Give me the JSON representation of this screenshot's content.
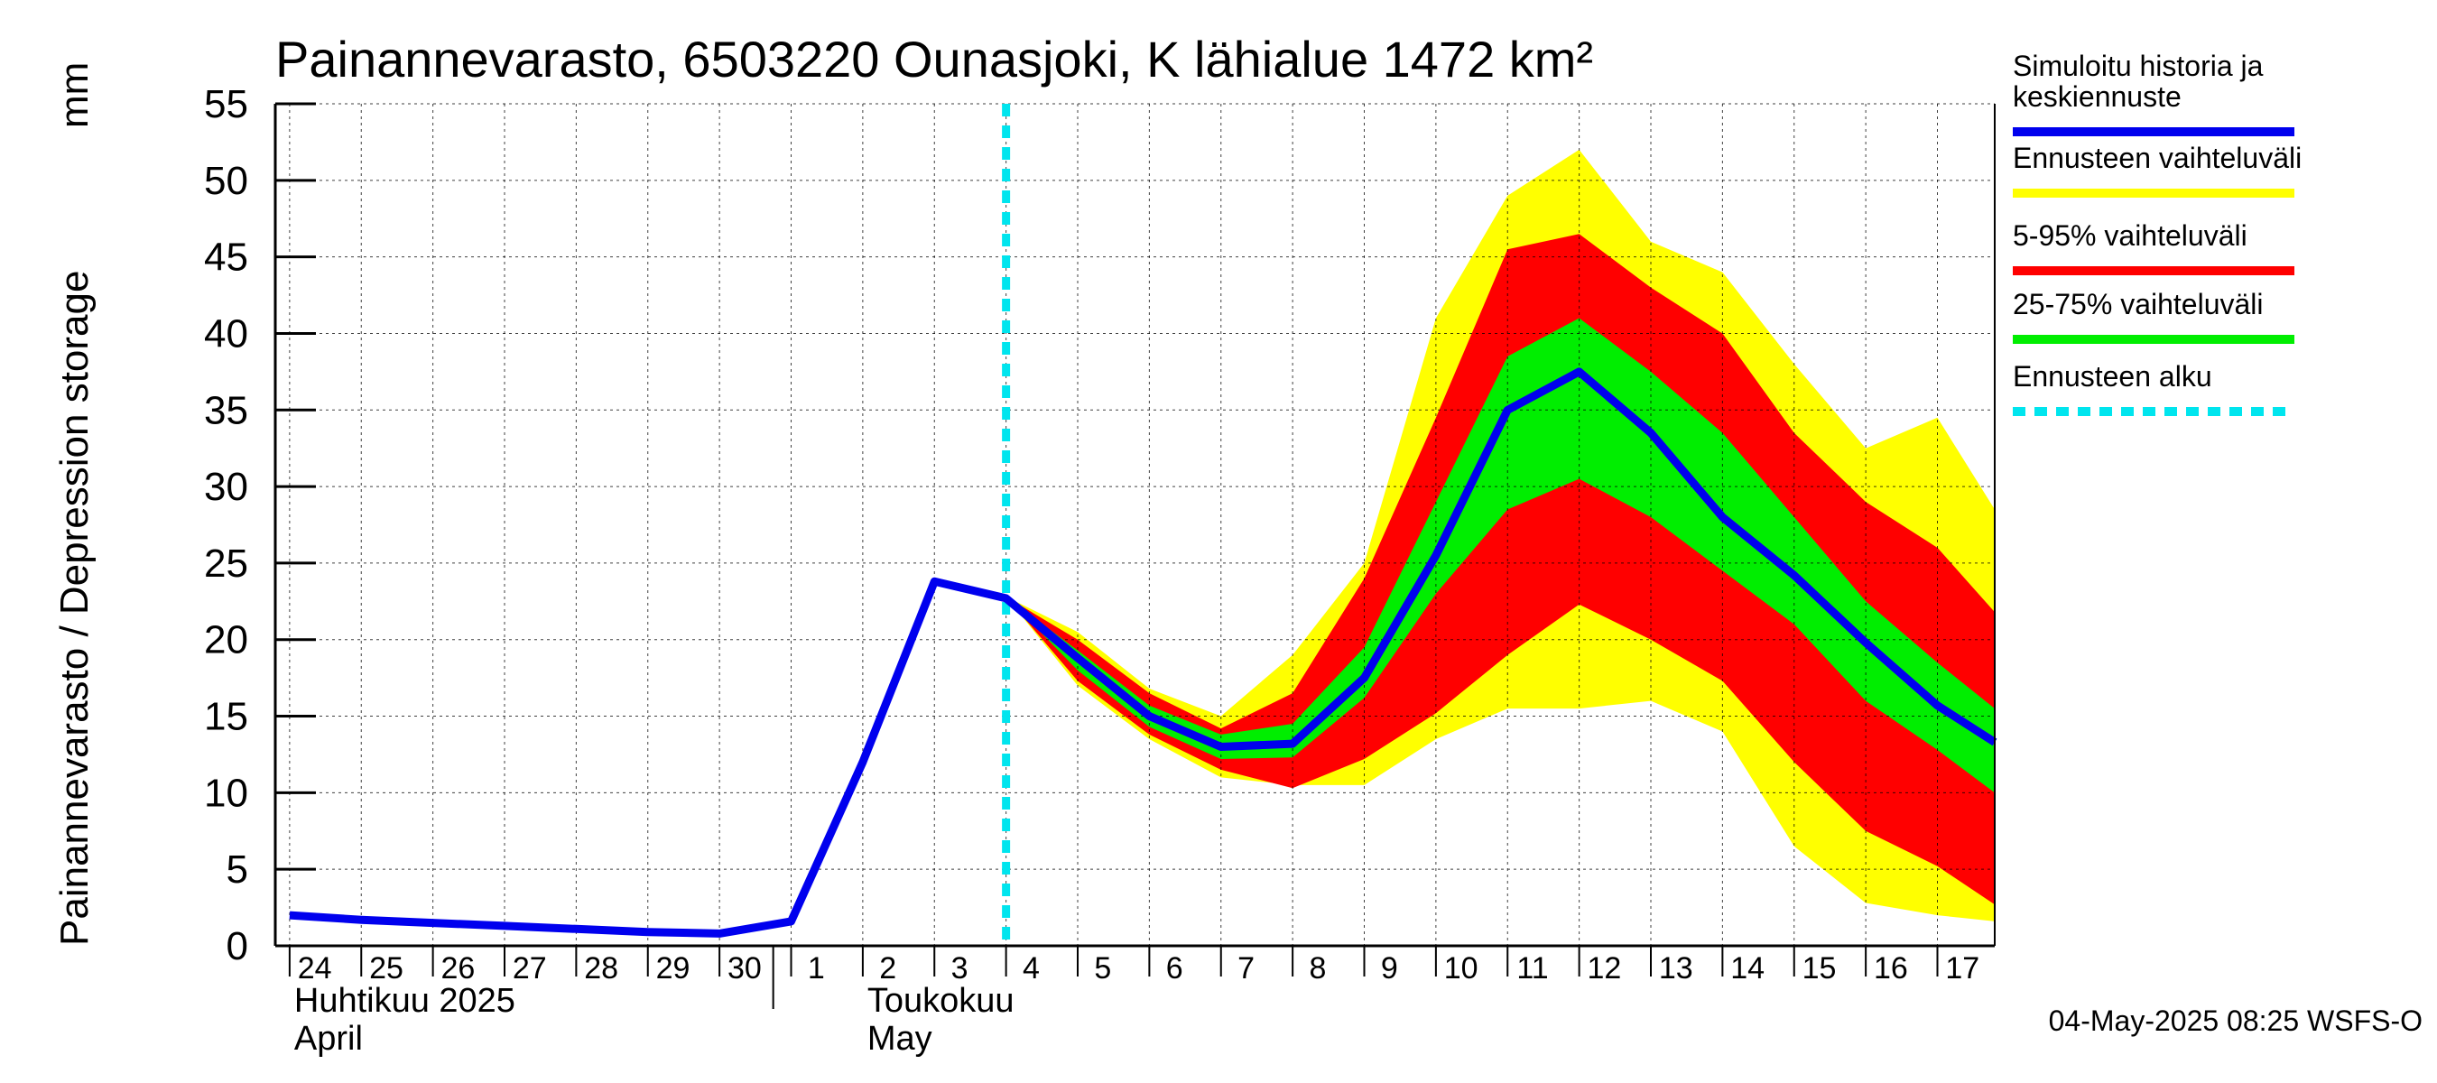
{
  "chart_data": {
    "type": "area",
    "title": "Painannevarasto, 6503220 Ounasjoki, K lähialue 1472 km²",
    "ylabel_left": "Painannevarasto / Depression storage",
    "ylabel_unit": "mm",
    "ylim": [
      0,
      55
    ],
    "yticks": [
      0,
      5,
      10,
      15,
      20,
      25,
      30,
      35,
      40,
      45,
      50,
      55
    ],
    "grid": true,
    "x_range": [
      -0.2,
      23.8
    ],
    "x_ticks": [
      {
        "x": 0,
        "label": "24"
      },
      {
        "x": 1,
        "label": "25"
      },
      {
        "x": 2,
        "label": "26"
      },
      {
        "x": 3,
        "label": "27"
      },
      {
        "x": 4,
        "label": "28"
      },
      {
        "x": 5,
        "label": "29"
      },
      {
        "x": 6,
        "label": "30"
      },
      {
        "x": 7,
        "label": "1"
      },
      {
        "x": 8,
        "label": "2"
      },
      {
        "x": 9,
        "label": "3"
      },
      {
        "x": 10,
        "label": "4"
      },
      {
        "x": 11,
        "label": "5"
      },
      {
        "x": 12,
        "label": "6"
      },
      {
        "x": 13,
        "label": "7"
      },
      {
        "x": 14,
        "label": "8"
      },
      {
        "x": 15,
        "label": "9"
      },
      {
        "x": 16,
        "label": "10"
      },
      {
        "x": 17,
        "label": "11"
      },
      {
        "x": 18,
        "label": "12"
      },
      {
        "x": 19,
        "label": "13"
      },
      {
        "x": 20,
        "label": "14"
      },
      {
        "x": 21,
        "label": "15"
      },
      {
        "x": 22,
        "label": "16"
      },
      {
        "x": 23,
        "label": "17"
      }
    ],
    "month_labels": [
      {
        "x": 0,
        "line1": "Huhtikuu  2025",
        "line2": "April"
      },
      {
        "x": 8,
        "line1": "Toukokuu",
        "line2": "May"
      }
    ],
    "month_boundary_x": 6.75,
    "forecast_start_x": 10,
    "bands": [
      {
        "name": "Ennusteen vaihteluväli",
        "color": "#ffff00",
        "x": [
          10,
          11,
          12,
          13,
          14,
          15,
          16,
          17,
          18,
          19,
          20,
          21,
          22,
          23,
          23.8
        ],
        "upper": [
          22.8,
          20.5,
          16.8,
          15.0,
          19.0,
          25.0,
          41.0,
          49.0,
          52.0,
          46.0,
          44.0,
          38.0,
          32.5,
          34.5,
          28.5
        ],
        "lower": [
          22.8,
          17.0,
          13.5,
          11.0,
          10.5,
          10.5,
          13.5,
          15.5,
          15.5,
          16.0,
          14.0,
          6.5,
          2.8,
          2.0,
          1.6
        ]
      },
      {
        "name": "5-95% vaihteluväli",
        "color": "#ff0000",
        "x": [
          10,
          11,
          12,
          13,
          14,
          15,
          16,
          17,
          18,
          19,
          20,
          21,
          22,
          23,
          23.8
        ],
        "upper": [
          22.8,
          20.0,
          16.5,
          14.2,
          16.5,
          24.0,
          34.5,
          45.5,
          46.5,
          43.0,
          40.0,
          33.5,
          29.0,
          26.0,
          21.8
        ],
        "lower": [
          22.8,
          17.3,
          13.8,
          11.5,
          10.3,
          12.2,
          15.2,
          19.0,
          22.3,
          20.0,
          17.3,
          12.0,
          7.5,
          5.2,
          2.7
        ]
      },
      {
        "name": "25-75% vaihteluväli",
        "color": "#00ee00",
        "x": [
          10,
          11,
          12,
          13,
          14,
          15,
          16,
          17,
          18,
          19,
          20,
          21,
          22,
          23,
          23.8
        ],
        "upper": [
          22.8,
          19.3,
          15.7,
          13.8,
          14.5,
          19.5,
          29.0,
          38.5,
          41.0,
          37.5,
          33.5,
          28.0,
          22.5,
          18.5,
          15.5
        ],
        "lower": [
          22.8,
          18.0,
          14.3,
          12.2,
          12.3,
          16.2,
          23.0,
          28.5,
          30.5,
          28.0,
          24.5,
          21.0,
          16.0,
          12.8,
          10.0
        ]
      }
    ],
    "series": [
      {
        "name": "Simuloitu historia ja keskiennuste",
        "color": "#0000ee",
        "x": [
          0,
          1,
          2,
          3,
          4,
          5,
          6,
          7,
          8,
          9,
          10,
          11,
          12,
          13,
          14,
          15,
          16,
          17,
          18,
          19,
          20,
          21,
          22,
          23,
          23.8
        ],
        "values": [
          2.0,
          1.7,
          1.5,
          1.3,
          1.1,
          0.9,
          0.8,
          1.6,
          12.0,
          23.8,
          22.7,
          18.8,
          15.0,
          13.0,
          13.2,
          17.5,
          25.5,
          35.0,
          37.5,
          33.5,
          28.0,
          24.2,
          19.8,
          15.7,
          13.3
        ]
      }
    ]
  },
  "legend": {
    "items": [
      {
        "label_lines": [
          "Simuloitu historia ja",
          "keskiennuste"
        ],
        "color": "#0000ee",
        "style": "solid"
      },
      {
        "label_lines": [
          "Ennusteen vaihteluväli"
        ],
        "color": "#ffff00",
        "style": "solid"
      },
      {
        "label_lines": [
          "5-95% vaihteluväli"
        ],
        "color": "#ff0000",
        "style": "solid"
      },
      {
        "label_lines": [
          "25-75% vaihteluväli"
        ],
        "color": "#00ee00",
        "style": "solid"
      },
      {
        "label_lines": [
          "Ennusteen alku"
        ],
        "color": "#00e5ee",
        "style": "dashed"
      }
    ]
  },
  "timestamp": "04-May-2025 08:25 WSFS-O"
}
